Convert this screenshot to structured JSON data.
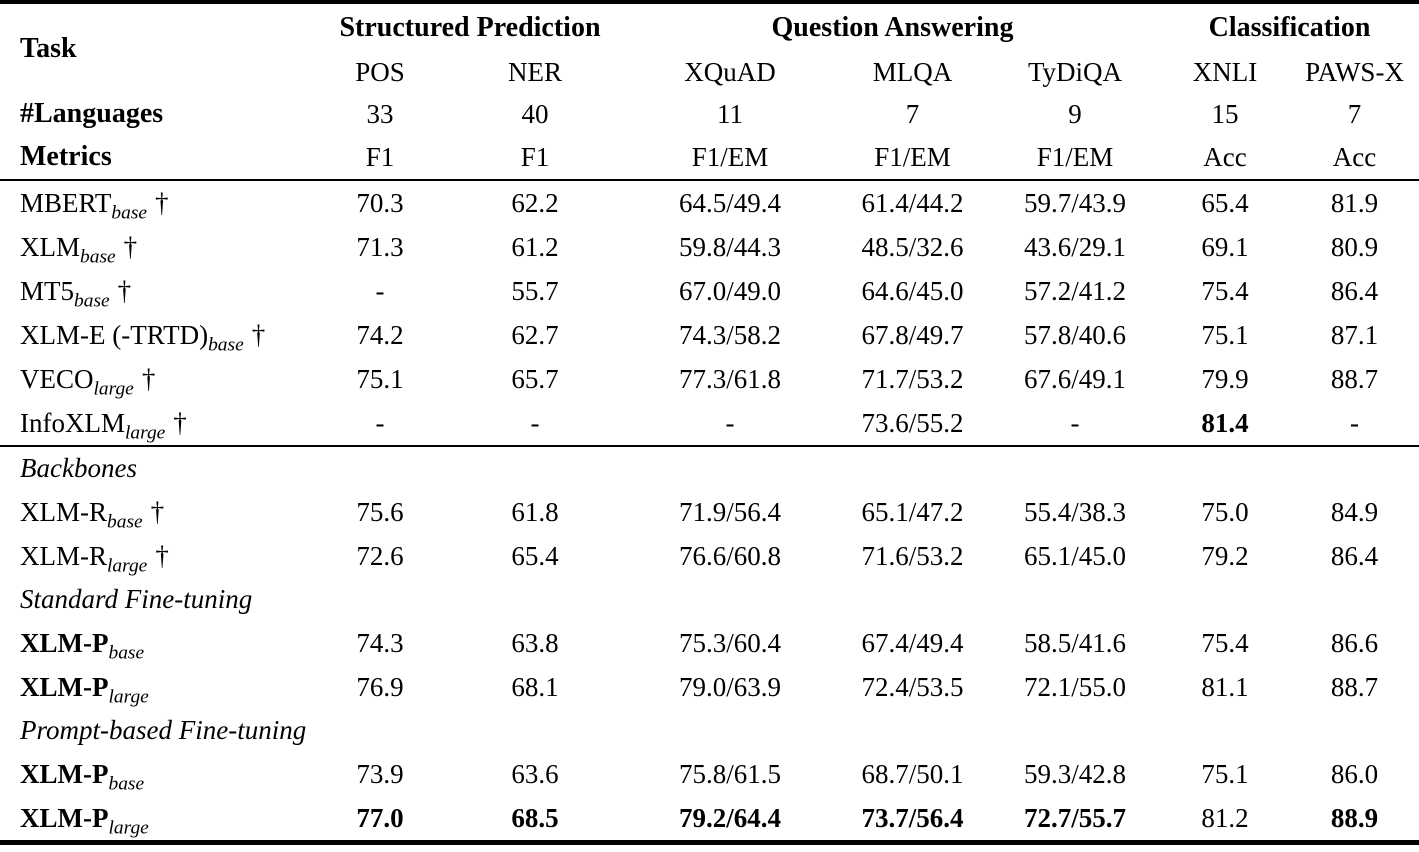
{
  "page": {
    "background": "#ffffff",
    "text_color": "#000000"
  },
  "table": {
    "corner_label": "Task",
    "groups": [
      {
        "label": "Structured Prediction",
        "colspan": 2
      },
      {
        "label": "Question Answering",
        "colspan": 3
      },
      {
        "label": "Classification",
        "colspan": 2
      }
    ],
    "columns": [
      "POS",
      "NER",
      "XQuAD",
      "MLQA",
      "TyDiQA",
      "XNLI",
      "PAWS-X"
    ],
    "languages_row": {
      "label": "#Languages",
      "values": [
        "33",
        "40",
        "11",
        "7",
        "9",
        "15",
        "7"
      ]
    },
    "metrics_row": {
      "label": "Metrics",
      "values": [
        "F1",
        "F1",
        "F1/EM",
        "F1/EM",
        "F1/EM",
        "Acc",
        "Acc"
      ]
    },
    "block1_rows": [
      {
        "type": "row",
        "name": "MBERT",
        "subscript": "base",
        "dagger": "†",
        "name_bold": false,
        "values": [
          "70.3",
          "62.2",
          "64.5/49.4",
          "61.4/44.2",
          "59.7/43.9",
          "65.4",
          "81.9"
        ],
        "bold": [
          false,
          false,
          false,
          false,
          false,
          false,
          false
        ]
      },
      {
        "type": "row",
        "name": "XLM",
        "subscript": "base",
        "dagger": "†",
        "name_bold": false,
        "values": [
          "71.3",
          "61.2",
          "59.8/44.3",
          "48.5/32.6",
          "43.6/29.1",
          "69.1",
          "80.9"
        ],
        "bold": [
          false,
          false,
          false,
          false,
          false,
          false,
          false
        ]
      },
      {
        "type": "row",
        "name": "MT5",
        "subscript": "base",
        "dagger": "†",
        "name_bold": false,
        "values": [
          "-",
          "55.7",
          "67.0/49.0",
          "64.6/45.0",
          "57.2/41.2",
          "75.4",
          "86.4"
        ],
        "bold": [
          false,
          false,
          false,
          false,
          false,
          false,
          false
        ]
      },
      {
        "type": "row",
        "name": "XLM-E (-TRTD)",
        "subscript": "base",
        "dagger": "†",
        "name_bold": false,
        "values": [
          "74.2",
          "62.7",
          "74.3/58.2",
          "67.8/49.7",
          "57.8/40.6",
          "75.1",
          "87.1"
        ],
        "bold": [
          false,
          false,
          false,
          false,
          false,
          false,
          false
        ]
      },
      {
        "type": "row",
        "name": "VECO",
        "subscript": "large",
        "dagger": "†",
        "name_bold": false,
        "values": [
          "75.1",
          "65.7",
          "77.3/61.8",
          "71.7/53.2",
          "67.6/49.1",
          "79.9",
          "88.7"
        ],
        "bold": [
          false,
          false,
          false,
          false,
          false,
          false,
          false
        ]
      },
      {
        "type": "row",
        "name": "InfoXLM",
        "subscript": "large",
        "dagger": "†",
        "name_bold": false,
        "values": [
          "-",
          "-",
          "-",
          "73.6/55.2",
          "-",
          "81.4",
          "-"
        ],
        "bold": [
          false,
          false,
          false,
          false,
          false,
          true,
          false
        ]
      }
    ],
    "block2_items": [
      {
        "type": "heading",
        "label": "Backbones"
      },
      {
        "type": "row",
        "name": "XLM-R",
        "subscript": "base",
        "dagger": "†",
        "name_bold": false,
        "values": [
          "75.6",
          "61.8",
          "71.9/56.4",
          "65.1/47.2",
          "55.4/38.3",
          "75.0",
          "84.9"
        ],
        "bold": [
          false,
          false,
          false,
          false,
          false,
          false,
          false
        ]
      },
      {
        "type": "row",
        "name": "XLM-R",
        "subscript": "large",
        "dagger": "†",
        "name_bold": false,
        "values": [
          "72.6",
          "65.4",
          "76.6/60.8",
          "71.6/53.2",
          "65.1/45.0",
          "79.2",
          "86.4"
        ],
        "bold": [
          false,
          false,
          false,
          false,
          false,
          false,
          false
        ]
      },
      {
        "type": "heading",
        "label": "Standard Fine-tuning"
      },
      {
        "type": "row",
        "name": "XLM-P",
        "subscript": "base",
        "dagger": "",
        "name_bold": true,
        "values": [
          "74.3",
          "63.8",
          "75.3/60.4",
          "67.4/49.4",
          "58.5/41.6",
          "75.4",
          "86.6"
        ],
        "bold": [
          false,
          false,
          false,
          false,
          false,
          false,
          false
        ]
      },
      {
        "type": "row",
        "name": "XLM-P",
        "subscript": "large",
        "dagger": "",
        "name_bold": true,
        "values": [
          "76.9",
          "68.1",
          "79.0/63.9",
          "72.4/53.5",
          "72.1/55.0",
          "81.1",
          "88.7"
        ],
        "bold": [
          false,
          false,
          false,
          false,
          false,
          false,
          false
        ]
      },
      {
        "type": "heading",
        "label": "Prompt-based Fine-tuning"
      },
      {
        "type": "row",
        "name": "XLM-P",
        "subscript": "base",
        "dagger": "",
        "name_bold": true,
        "values": [
          "73.9",
          "63.6",
          "75.8/61.5",
          "68.7/50.1",
          "59.3/42.8",
          "75.1",
          "86.0"
        ],
        "bold": [
          false,
          false,
          false,
          false,
          false,
          false,
          false
        ]
      },
      {
        "type": "row",
        "name": "XLM-P",
        "subscript": "large",
        "dagger": "",
        "name_bold": true,
        "values": [
          "77.0",
          "68.5",
          "79.2/64.4",
          "73.7/56.4",
          "72.7/55.7",
          "81.2",
          "88.9"
        ],
        "bold": [
          true,
          true,
          true,
          true,
          true,
          false,
          true
        ]
      }
    ]
  }
}
